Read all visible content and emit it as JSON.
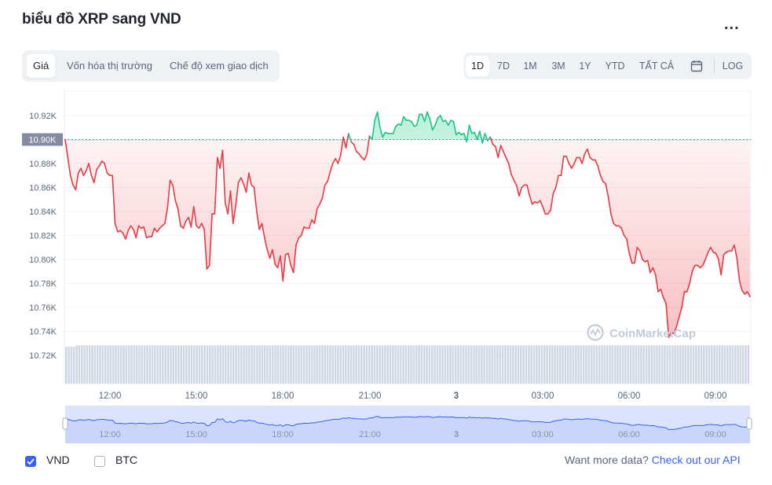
{
  "header": {
    "title": "biểu đồ XRP sang VND",
    "more_label": "..."
  },
  "tabs": [
    {
      "label": "Giá",
      "active": true
    },
    {
      "label": "Vốn hóa thị trường",
      "active": false
    },
    {
      "label": "Chế độ xem giao dịch",
      "active": false
    }
  ],
  "ranges": {
    "items": [
      "1D",
      "7D",
      "1M",
      "3M",
      "1Y",
      "YTD",
      "TẤT CẢ"
    ],
    "active": "1D",
    "log_label": "LOG",
    "calendar_icon": "calendar-icon"
  },
  "chart_data": {
    "type": "area",
    "ylim": [
      10700,
      10940
    ],
    "y_ticks": [
      {
        "value": 10720,
        "label": "10.72K"
      },
      {
        "value": 10740,
        "label": "10.74K"
      },
      {
        "value": 10760,
        "label": "10.76K"
      },
      {
        "value": 10780,
        "label": "10.78K"
      },
      {
        "value": 10800,
        "label": "10.80K"
      },
      {
        "value": 10820,
        "label": "10.82K"
      },
      {
        "value": 10840,
        "label": "10.84K"
      },
      {
        "value": 10860,
        "label": "10.86K"
      },
      {
        "value": 10880,
        "label": "10.88K"
      },
      {
        "value": 10900,
        "label": "10.90K"
      },
      {
        "value": 10920,
        "label": "10.92K"
      }
    ],
    "x_ticks": [
      "12:00",
      "15:00",
      "18:00",
      "21:00",
      "3",
      "03:00",
      "06:00",
      "09:00"
    ],
    "reference": {
      "value": 10900,
      "label": "10.90K"
    },
    "colors": {
      "up": "#16c784",
      "down": "#ea3943",
      "volume": "#cfd6e4",
      "navigator_fill": "#dbe3ff",
      "navigator_line": "#3861fb"
    },
    "watermark": "CoinMarketCap",
    "series": [
      {
        "values": [
          10900,
          10885,
          10870,
          10862,
          10858,
          10872,
          10876,
          10870,
          10874,
          10880,
          10870,
          10864,
          10875,
          10878,
          10882,
          10880,
          10872,
          10870,
          10870,
          10830,
          10823,
          10824,
          10822,
          10817,
          10824,
          10828,
          10825,
          10818,
          10828,
          10826,
          10827,
          10818,
          10819,
          10819,
          10826,
          10823,
          10826,
          10828,
          10830,
          10843,
          10866,
          10862,
          10849,
          10842,
          10828,
          10826,
          10832,
          10835,
          10827,
          10844,
          10828,
          10826,
          10830,
          10825,
          10792,
          10795,
          10838,
          10838,
          10885,
          10876,
          10891,
          10847,
          10838,
          10857,
          10830,
          10845,
          10864,
          10868,
          10863,
          10856,
          10872,
          10862,
          10860,
          10840,
          10825,
          10830,
          10818,
          10808,
          10801,
          10808,
          10796,
          10793,
          10803,
          10782,
          10804,
          10805,
          10795,
          10789,
          10812,
          10818,
          10820,
          10827,
          10826,
          10826,
          10833,
          10830,
          10842,
          10846,
          10851,
          10862,
          10865,
          10873,
          10880,
          10884,
          10880,
          10887,
          10902,
          10893,
          10905,
          10898,
          10896,
          10890,
          10888,
          10885,
          10883,
          10888,
          10903,
          10900,
          10916,
          10923,
          10910,
          10902,
          10906,
          10905,
          10905,
          10905,
          10911,
          10913,
          10912,
          10919,
          10916,
          10916,
          10915,
          10911,
          10912,
          10921,
          10921,
          10915,
          10923,
          10917,
          10908,
          10912,
          10918,
          10920,
          10915,
          10916,
          10912,
          10916,
          10915,
          10904,
          10906,
          10904,
          10905,
          10898,
          10912,
          10905,
          10906,
          10900,
          10907,
          10897,
          10905,
          10899,
          10902,
          10896,
          10894,
          10885,
          10895,
          10890,
          10885,
          10880,
          10871,
          10866,
          10862,
          10853,
          10860,
          10862,
          10862,
          10853,
          10846,
          10848,
          10847,
          10849,
          10844,
          10838,
          10838,
          10841,
          10855,
          10860,
          10870,
          10870,
          10886,
          10886,
          10880,
          10876,
          10880,
          10885,
          10885,
          10880,
          10888,
          10892,
          10885,
          10883,
          10883,
          10878,
          10870,
          10865,
          10863,
          10852,
          10838,
          10830,
          10828,
          10828,
          10826,
          10820,
          10817,
          10805,
          10797,
          10797,
          10810,
          10807,
          10800,
          10798,
          10799,
          10789,
          10793,
          10787,
          10773,
          10775,
          10768,
          10763,
          10735,
          10739,
          10738,
          10744,
          10752,
          10760,
          10773,
          10773,
          10780,
          10790,
          10795,
          10795,
          10793,
          10795,
          10800,
          10806,
          10810,
          10806,
          10805,
          10800,
          10787,
          10804,
          10806,
          10807,
          10807,
          10812,
          10801,
          10782,
          10774,
          10771,
          10773,
          10769
        ]
      }
    ],
    "volume": [
      25,
      25,
      25,
      25,
      26,
      26,
      26,
      26,
      26,
      26,
      26,
      26,
      26,
      26,
      26,
      26,
      26,
      26,
      26,
      26,
      26,
      26,
      26,
      26,
      26,
      26,
      26,
      26,
      26,
      26,
      26,
      26,
      26,
      26,
      26,
      26,
      26,
      26,
      26,
      26,
      26,
      26,
      26,
      26,
      26,
      26,
      26,
      26,
      26,
      26,
      26,
      26,
      26,
      26,
      26,
      26,
      26,
      26,
      26,
      26,
      26,
      26,
      26,
      26,
      26,
      26,
      26,
      26,
      26,
      26,
      26,
      26,
      26,
      26,
      26,
      26,
      26,
      26,
      26,
      26,
      26,
      26,
      26,
      26,
      26,
      26,
      26,
      26,
      26,
      26,
      26,
      26,
      26,
      26,
      26,
      26,
      26,
      26,
      26,
      26,
      26,
      26,
      26,
      26,
      26,
      26,
      26,
      26,
      26,
      26,
      26,
      26,
      26,
      26,
      26,
      26,
      26,
      26,
      26,
      26,
      26,
      26,
      26,
      26,
      26,
      26,
      26,
      26,
      26,
      26,
      26,
      26,
      26,
      26,
      26,
      26,
      26,
      26,
      26,
      26,
      26,
      26,
      26,
      26,
      26,
      26,
      26,
      26,
      26,
      26,
      26,
      26,
      26,
      26,
      26,
      26,
      26,
      26,
      26,
      26,
      26,
      26,
      26,
      26,
      26,
      26,
      26,
      26,
      26,
      26,
      26,
      26,
      26,
      26,
      26,
      26,
      26,
      26,
      26,
      26,
      26,
      26,
      26,
      26,
      26,
      26,
      26,
      26,
      26,
      26,
      26,
      26,
      26,
      26,
      26,
      26,
      26,
      26,
      26,
      26,
      26,
      26,
      26,
      26,
      26,
      26,
      26,
      26,
      26,
      26,
      26,
      26,
      26,
      26,
      26,
      26,
      26,
      26,
      26,
      26,
      26,
      26,
      26,
      26,
      26,
      26,
      26,
      26,
      26,
      26,
      26,
      26,
      26,
      26,
      26,
      26,
      26,
      26,
      26,
      26,
      26,
      26,
      26,
      26,
      26,
      26,
      26,
      26,
      26,
      26,
      26,
      26,
      26,
      26,
      26,
      26,
      26,
      26,
      26,
      26,
      26,
      26
    ]
  },
  "legend": [
    {
      "label": "VND",
      "checked": true
    },
    {
      "label": "BTC",
      "checked": false
    }
  ],
  "footer": {
    "prompt": "Want more data?",
    "link": "Check out our API"
  }
}
